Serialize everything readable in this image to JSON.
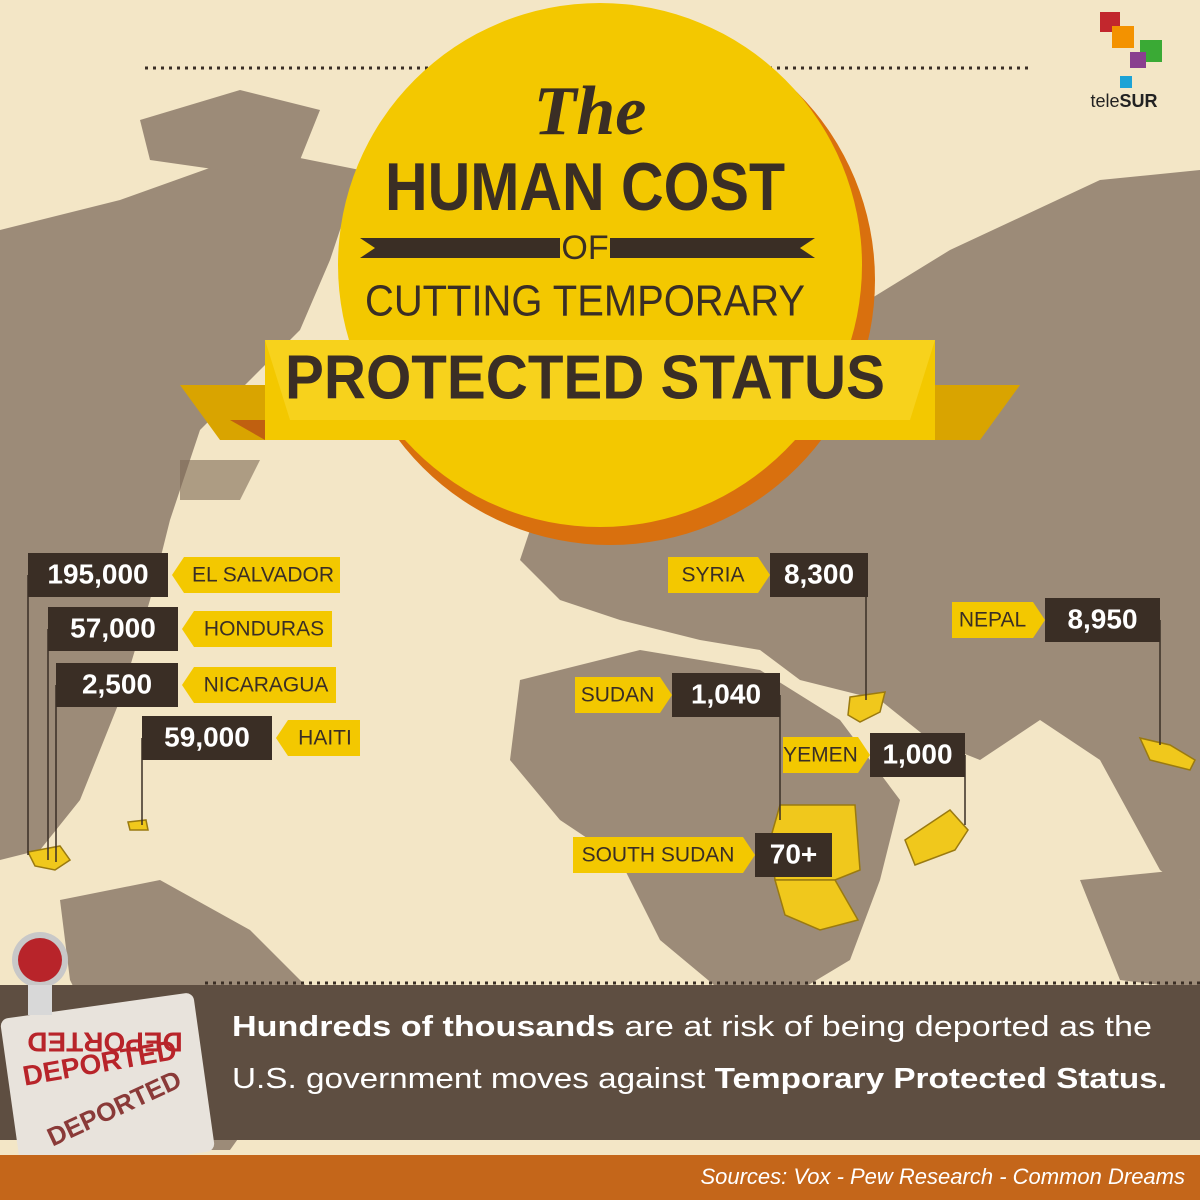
{
  "logo": {
    "prefix": "tele",
    "suffix": "SUR"
  },
  "title": {
    "line1": "The",
    "line2": "HUMAN COST",
    "line3": "OF",
    "line4": "CUTTING TEMPORARY",
    "line5": "PROTECTED STATUS"
  },
  "labels": [
    {
      "country": "EL SALVADOR",
      "count": "195,000"
    },
    {
      "country": "HONDURAS",
      "count": "57,000"
    },
    {
      "country": "NICARAGUA",
      "count": "2,500"
    },
    {
      "country": "HAITI",
      "count": "59,000"
    },
    {
      "country": "SYRIA",
      "count": "8,300"
    },
    {
      "country": "NEPAL",
      "count": "8,950"
    },
    {
      "country": "SUDAN",
      "count": "1,040"
    },
    {
      "country": "YEMEN",
      "count": "1,000"
    },
    {
      "country": "SOUTH SUDAN",
      "count": "70+"
    }
  ],
  "stamp": "DEPORTED",
  "message": {
    "line1": [
      {
        "text": "Hundreds of thousands",
        "bold": true
      },
      {
        "text": " are at risk of being deported as the",
        "bold": false
      }
    ],
    "line2": [
      {
        "text": "U.S. government moves against ",
        "bold": false
      },
      {
        "text": "Temporary Protected Status.",
        "bold": true
      }
    ]
  },
  "sources": "Sources: Vox - Pew Research - Common Dreams"
}
